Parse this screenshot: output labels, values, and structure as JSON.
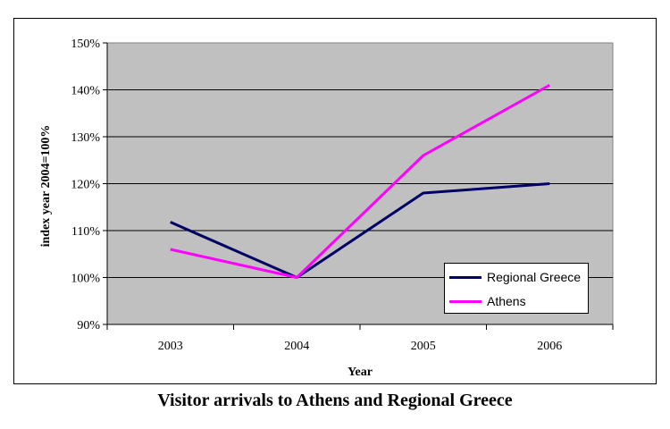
{
  "chart_data": {
    "type": "line",
    "title": "Visitor arrivals to Athens and Regional Greece",
    "xlabel": "Year",
    "ylabel": "index year  2004=100%",
    "categories": [
      "2003",
      "2004",
      "2005",
      "2006"
    ],
    "ylim": [
      90,
      150
    ],
    "yticks": [
      "90%",
      "100%",
      "110%",
      "120%",
      "130%",
      "140%",
      "150%"
    ],
    "grid": true,
    "plot_background": "#c0c0c0",
    "legend_position": "bottom-right",
    "series": [
      {
        "name": "Regional Greece",
        "color": "#000066",
        "values": [
          111.8,
          100,
          118,
          120
        ]
      },
      {
        "name": "Athens",
        "color": "#ff00ff",
        "values": [
          106,
          100,
          126,
          141
        ]
      }
    ]
  }
}
